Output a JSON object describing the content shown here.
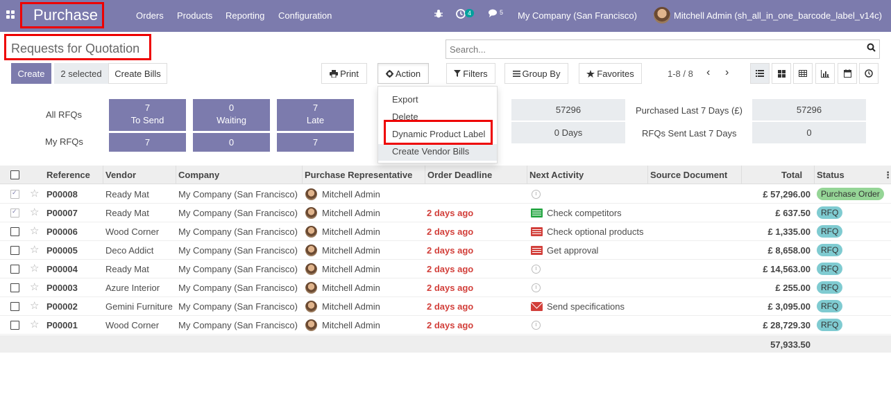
{
  "navbar": {
    "brand": "Purchase",
    "menu": [
      "Orders",
      "Products",
      "Reporting",
      "Configuration"
    ],
    "activity_count": "4",
    "message_count": "5",
    "company": "My Company (San Francisco)",
    "user": "Mitchell Admin (sh_all_in_one_barcode_label_v14c)"
  },
  "control_panel": {
    "title": "Requests for Quotation",
    "search_placeholder": "Search...",
    "create_label": "Create",
    "selected_label": "2 selected",
    "create_bills_label": "Create Bills",
    "print_label": "Print",
    "action_label": "Action",
    "filters_label": "Filters",
    "group_by_label": "Group By",
    "favorites_label": "Favorites",
    "pager": "1-8 / 8"
  },
  "action_menu": {
    "items": [
      "Export",
      "Delete",
      "Dynamic Product Label",
      "Create Vendor Bills"
    ]
  },
  "dashboard": {
    "all_rfqs_label": "All RFQs",
    "my_rfqs_label": "My RFQs",
    "tiles": [
      {
        "value": "7",
        "label": "To Send"
      },
      {
        "value": "0",
        "label": "Waiting"
      },
      {
        "value": "7",
        "label": "Late"
      }
    ],
    "my_values": [
      "7",
      "0",
      "7"
    ],
    "kpi_left": [
      "57296",
      "0  Days"
    ],
    "kpi_labels": [
      "Purchased Last 7 Days (£)",
      "RFQs Sent Last 7 Days"
    ],
    "kpi_right": [
      "57296",
      "0"
    ]
  },
  "table": {
    "headers": [
      "Reference",
      "Vendor",
      "Company",
      "Purchase Representative",
      "Order Deadline",
      "Next Activity",
      "Source Document",
      "Total",
      "Status"
    ],
    "rows": [
      {
        "ref": "P00008",
        "vendor": "Ready Mat",
        "company": "My Company (San Francisco)",
        "rep": "Mitchell Admin",
        "deadline": "",
        "activity": "",
        "activity_icon": "clock-icon",
        "total": "£ 57,296.00",
        "status": "Purchase Order",
        "checked": true
      },
      {
        "ref": "P00007",
        "vendor": "Ready Mat",
        "company": "My Company (San Francisco)",
        "rep": "Mitchell Admin",
        "deadline": "2 days ago",
        "activity": "Check competitors",
        "activity_icon": "todo-green-icon",
        "total": "£ 637.50",
        "status": "RFQ",
        "checked": true
      },
      {
        "ref": "P00006",
        "vendor": "Wood Corner",
        "company": "My Company (San Francisco)",
        "rep": "Mitchell Admin",
        "deadline": "2 days ago",
        "activity": "Check optional products",
        "activity_icon": "todo-red-icon",
        "total": "£ 1,335.00",
        "status": "RFQ",
        "checked": false
      },
      {
        "ref": "P00005",
        "vendor": "Deco Addict",
        "company": "My Company (San Francisco)",
        "rep": "Mitchell Admin",
        "deadline": "2 days ago",
        "activity": "Get approval",
        "activity_icon": "todo-red-icon",
        "total": "£ 8,658.00",
        "status": "RFQ",
        "checked": false
      },
      {
        "ref": "P00004",
        "vendor": "Ready Mat",
        "company": "My Company (San Francisco)",
        "rep": "Mitchell Admin",
        "deadline": "2 days ago",
        "activity": "",
        "activity_icon": "clock-icon",
        "total": "£ 14,563.00",
        "status": "RFQ",
        "checked": false
      },
      {
        "ref": "P00003",
        "vendor": "Azure Interior",
        "company": "My Company (San Francisco)",
        "rep": "Mitchell Admin",
        "deadline": "2 days ago",
        "activity": "",
        "activity_icon": "clock-icon",
        "total": "£ 255.00",
        "status": "RFQ",
        "checked": false
      },
      {
        "ref": "P00002",
        "vendor": "Gemini Furniture",
        "company": "My Company (San Francisco)",
        "rep": "Mitchell Admin",
        "deadline": "2 days ago",
        "activity": "Send specifications",
        "activity_icon": "mail-icon",
        "total": "£ 3,095.00",
        "status": "RFQ",
        "checked": false
      },
      {
        "ref": "P00001",
        "vendor": "Wood Corner",
        "company": "My Company (San Francisco)",
        "rep": "Mitchell Admin",
        "deadline": "2 days ago",
        "activity": "",
        "activity_icon": "clock-icon",
        "total": "£ 28,729.30",
        "status": "RFQ",
        "checked": false
      }
    ],
    "footer_total": "57,933.50"
  },
  "colors": {
    "primary": "#7c7bad",
    "deadline": "#d23f3a",
    "rfq_badge": "#7fcbd1",
    "po_badge": "#95d596",
    "highlight_box": "#ee0000"
  }
}
